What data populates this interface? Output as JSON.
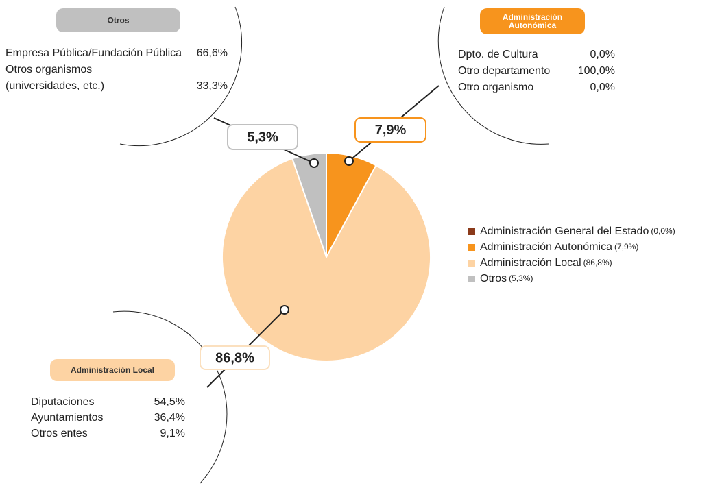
{
  "chart_data": {
    "type": "pie",
    "categories": [
      "Administración General del Estado",
      "Administración Autonómica",
      "Administración Local",
      "Otros"
    ],
    "values": [
      0.0,
      7.9,
      86.8,
      5.3
    ],
    "value_labels": [
      "0,0%",
      "7,9%",
      "86,8%",
      "5,3%"
    ],
    "legend_value_labels": [
      "(0,0%)",
      "(7,9%)",
      "(86,8%)",
      "(5,3%)"
    ],
    "colors": [
      "#8b3a1a",
      "#f7941d",
      "#fdd3a3",
      "#c0c0c0"
    ],
    "legend": "right",
    "breakdowns": [
      {
        "title": [
          "Administración",
          "Autonómica"
        ],
        "rows": [
          {
            "label": [
              "Dpto. de Cultura"
            ],
            "value": "0,0%"
          },
          {
            "label": [
              "Otro departamento"
            ],
            "value": "100,0%"
          },
          {
            "label": [
              "Otro organismo"
            ],
            "value": "0,0%"
          }
        ]
      },
      {
        "title": [
          "Administración Local"
        ],
        "rows": [
          {
            "label": [
              "Diputaciones"
            ],
            "value": "54,5%"
          },
          {
            "label": [
              "Ayuntamientos"
            ],
            "value": "36,4%"
          },
          {
            "label": [
              "Otros entes"
            ],
            "value": "9,1%"
          }
        ]
      },
      {
        "title": [
          "Otros"
        ],
        "rows": [
          {
            "label": [
              "Empresa Pública/Fundación Pública"
            ],
            "value": "66,6%"
          },
          {
            "label": [
              "Otros organismos",
              "(universidades, etc.)"
            ],
            "value": "33,3%"
          }
        ]
      }
    ]
  }
}
